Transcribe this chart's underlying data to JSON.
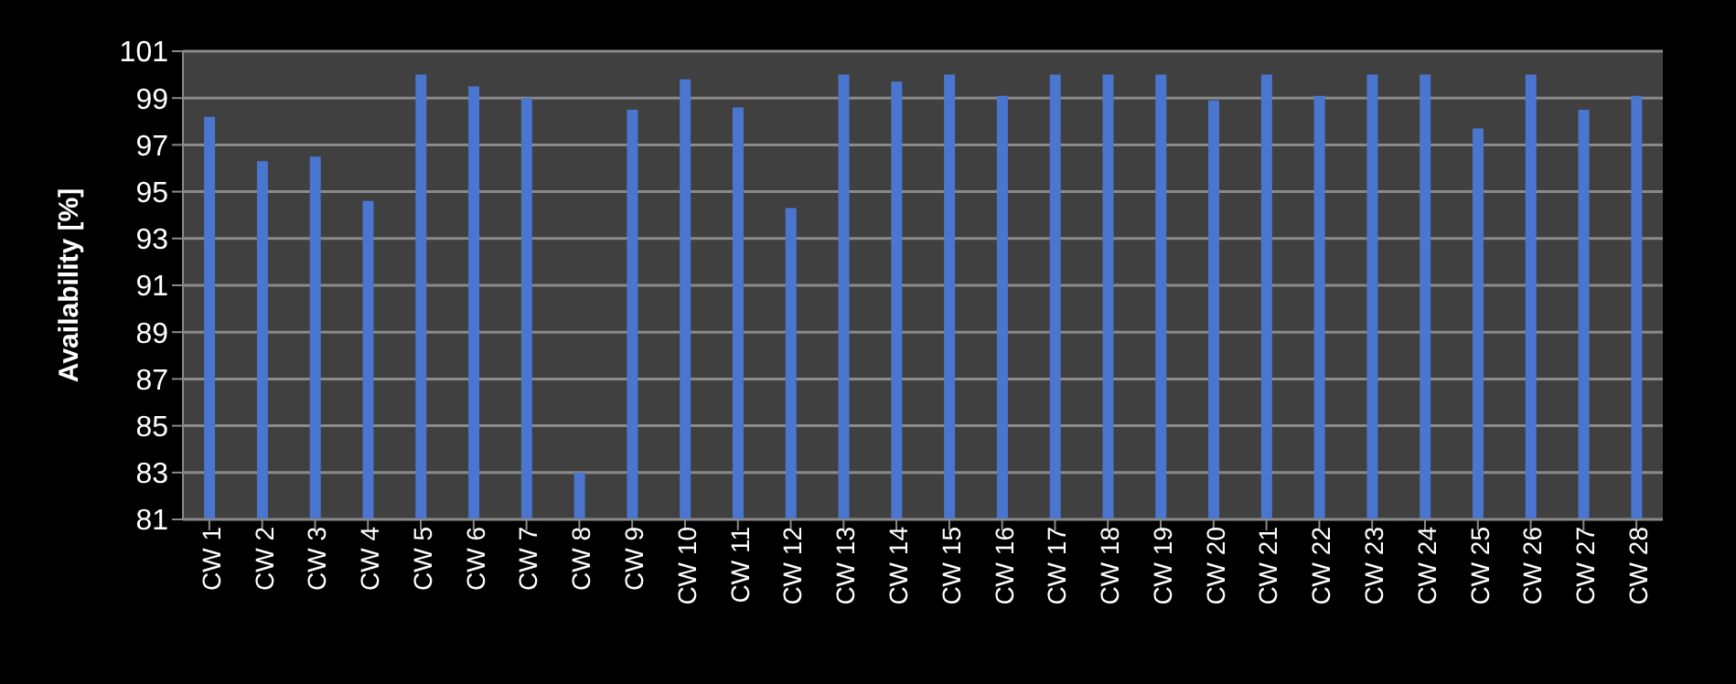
{
  "chart_data": {
    "type": "bar",
    "ylabel": "Availability [%]",
    "categories": [
      "CW 1",
      "CW 2",
      "CW 3",
      "CW 4",
      "CW 5",
      "CW 6",
      "CW 7",
      "CW 8",
      "CW 9",
      "CW 10",
      "CW 11",
      "CW 12",
      "CW 13",
      "CW 14",
      "CW 15",
      "CW 16",
      "CW 17",
      "CW 18",
      "CW 19",
      "CW 20",
      "CW 21",
      "CW 22",
      "CW 23",
      "CW 24",
      "CW 25",
      "CW 26",
      "CW 27",
      "CW 28"
    ],
    "values": [
      98.2,
      96.3,
      96.5,
      94.6,
      100,
      99.5,
      99.0,
      83.0,
      98.5,
      99.8,
      98.6,
      94.3,
      100,
      99.7,
      100,
      99.1,
      100,
      100,
      100,
      98.9,
      100,
      99.1,
      100,
      100,
      97.7,
      100,
      98.5,
      99.1
    ],
    "color": "#4a76d0",
    "ylim": [
      81,
      101
    ],
    "yticks": [
      81,
      83,
      85,
      87,
      89,
      91,
      93,
      95,
      97,
      99,
      101
    ],
    "grid": "y"
  }
}
